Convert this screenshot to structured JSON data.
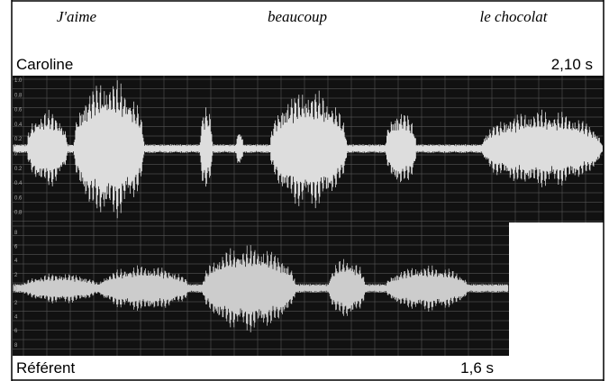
{
  "header": {
    "words": [
      "J'aime",
      "beaucoup",
      "le chocolat"
    ]
  },
  "top_panel": {
    "speaker": "Caroline",
    "duration": "2,10 s",
    "axis_labels": [
      "1.0",
      "0.8",
      "0.6",
      "0.4",
      "0.2",
      "0",
      "0.2",
      "0.4",
      "0.6",
      "0.8"
    ]
  },
  "bottom_panel": {
    "speaker": "Référent",
    "duration": "1,6 s",
    "axis_labels": [
      "8",
      "6",
      "4",
      "2",
      "0",
      "2",
      "4",
      "6",
      "8"
    ]
  }
}
